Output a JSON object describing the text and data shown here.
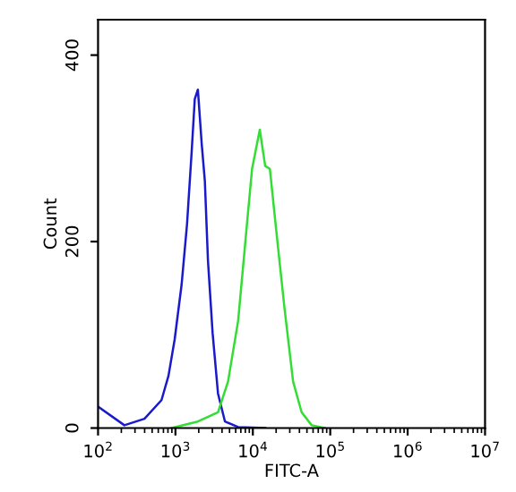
{
  "chart_data": {
    "type": "line",
    "xlabel": "FITC-A",
    "ylabel": "Count",
    "log": "x",
    "grid": false,
    "marker": "none",
    "line_style": "solid",
    "xlim": [
      100,
      10000000
    ],
    "ylim": [
      0,
      438
    ],
    "xticks": [
      {
        "value": 100,
        "label": "10$^{2}$"
      },
      {
        "value": 1000,
        "label": "10$^{3}$"
      },
      {
        "value": 10000,
        "label": "10$^{4}$"
      },
      {
        "value": 100000,
        "label": "10$^{5}$"
      },
      {
        "value": 1000000,
        "label": "10$^{6}$"
      },
      {
        "value": 10000000,
        "label": "10$^{7}$"
      }
    ],
    "yticks": [
      0,
      200,
      400
    ],
    "series": [
      {
        "color": "#1a1acc",
        "x": [
          100,
          219,
          398,
          661,
          813,
          977,
          1202,
          1413,
          1622,
          1778,
          1950,
          2188,
          2399,
          2630,
          3020,
          3548,
          4365,
          6457,
          14450
        ],
        "values": [
          23,
          3,
          10,
          30,
          56,
          95,
          154,
          219,
          297,
          353,
          363,
          304,
          265,
          180,
          102,
          37,
          7,
          1,
          0
        ]
      },
      {
        "color": "#33dd33",
        "x": [
          891,
          1950,
          3548,
          4786,
          6457,
          8128,
          9772,
          12300,
          14450,
          16600,
          20420,
          25700,
          33110,
          42660,
          57540,
          85110
        ],
        "values": [
          0,
          7,
          17,
          50,
          115,
          206,
          278,
          320,
          281,
          278,
          206,
          128,
          50,
          17,
          3,
          0
        ]
      }
    ]
  }
}
